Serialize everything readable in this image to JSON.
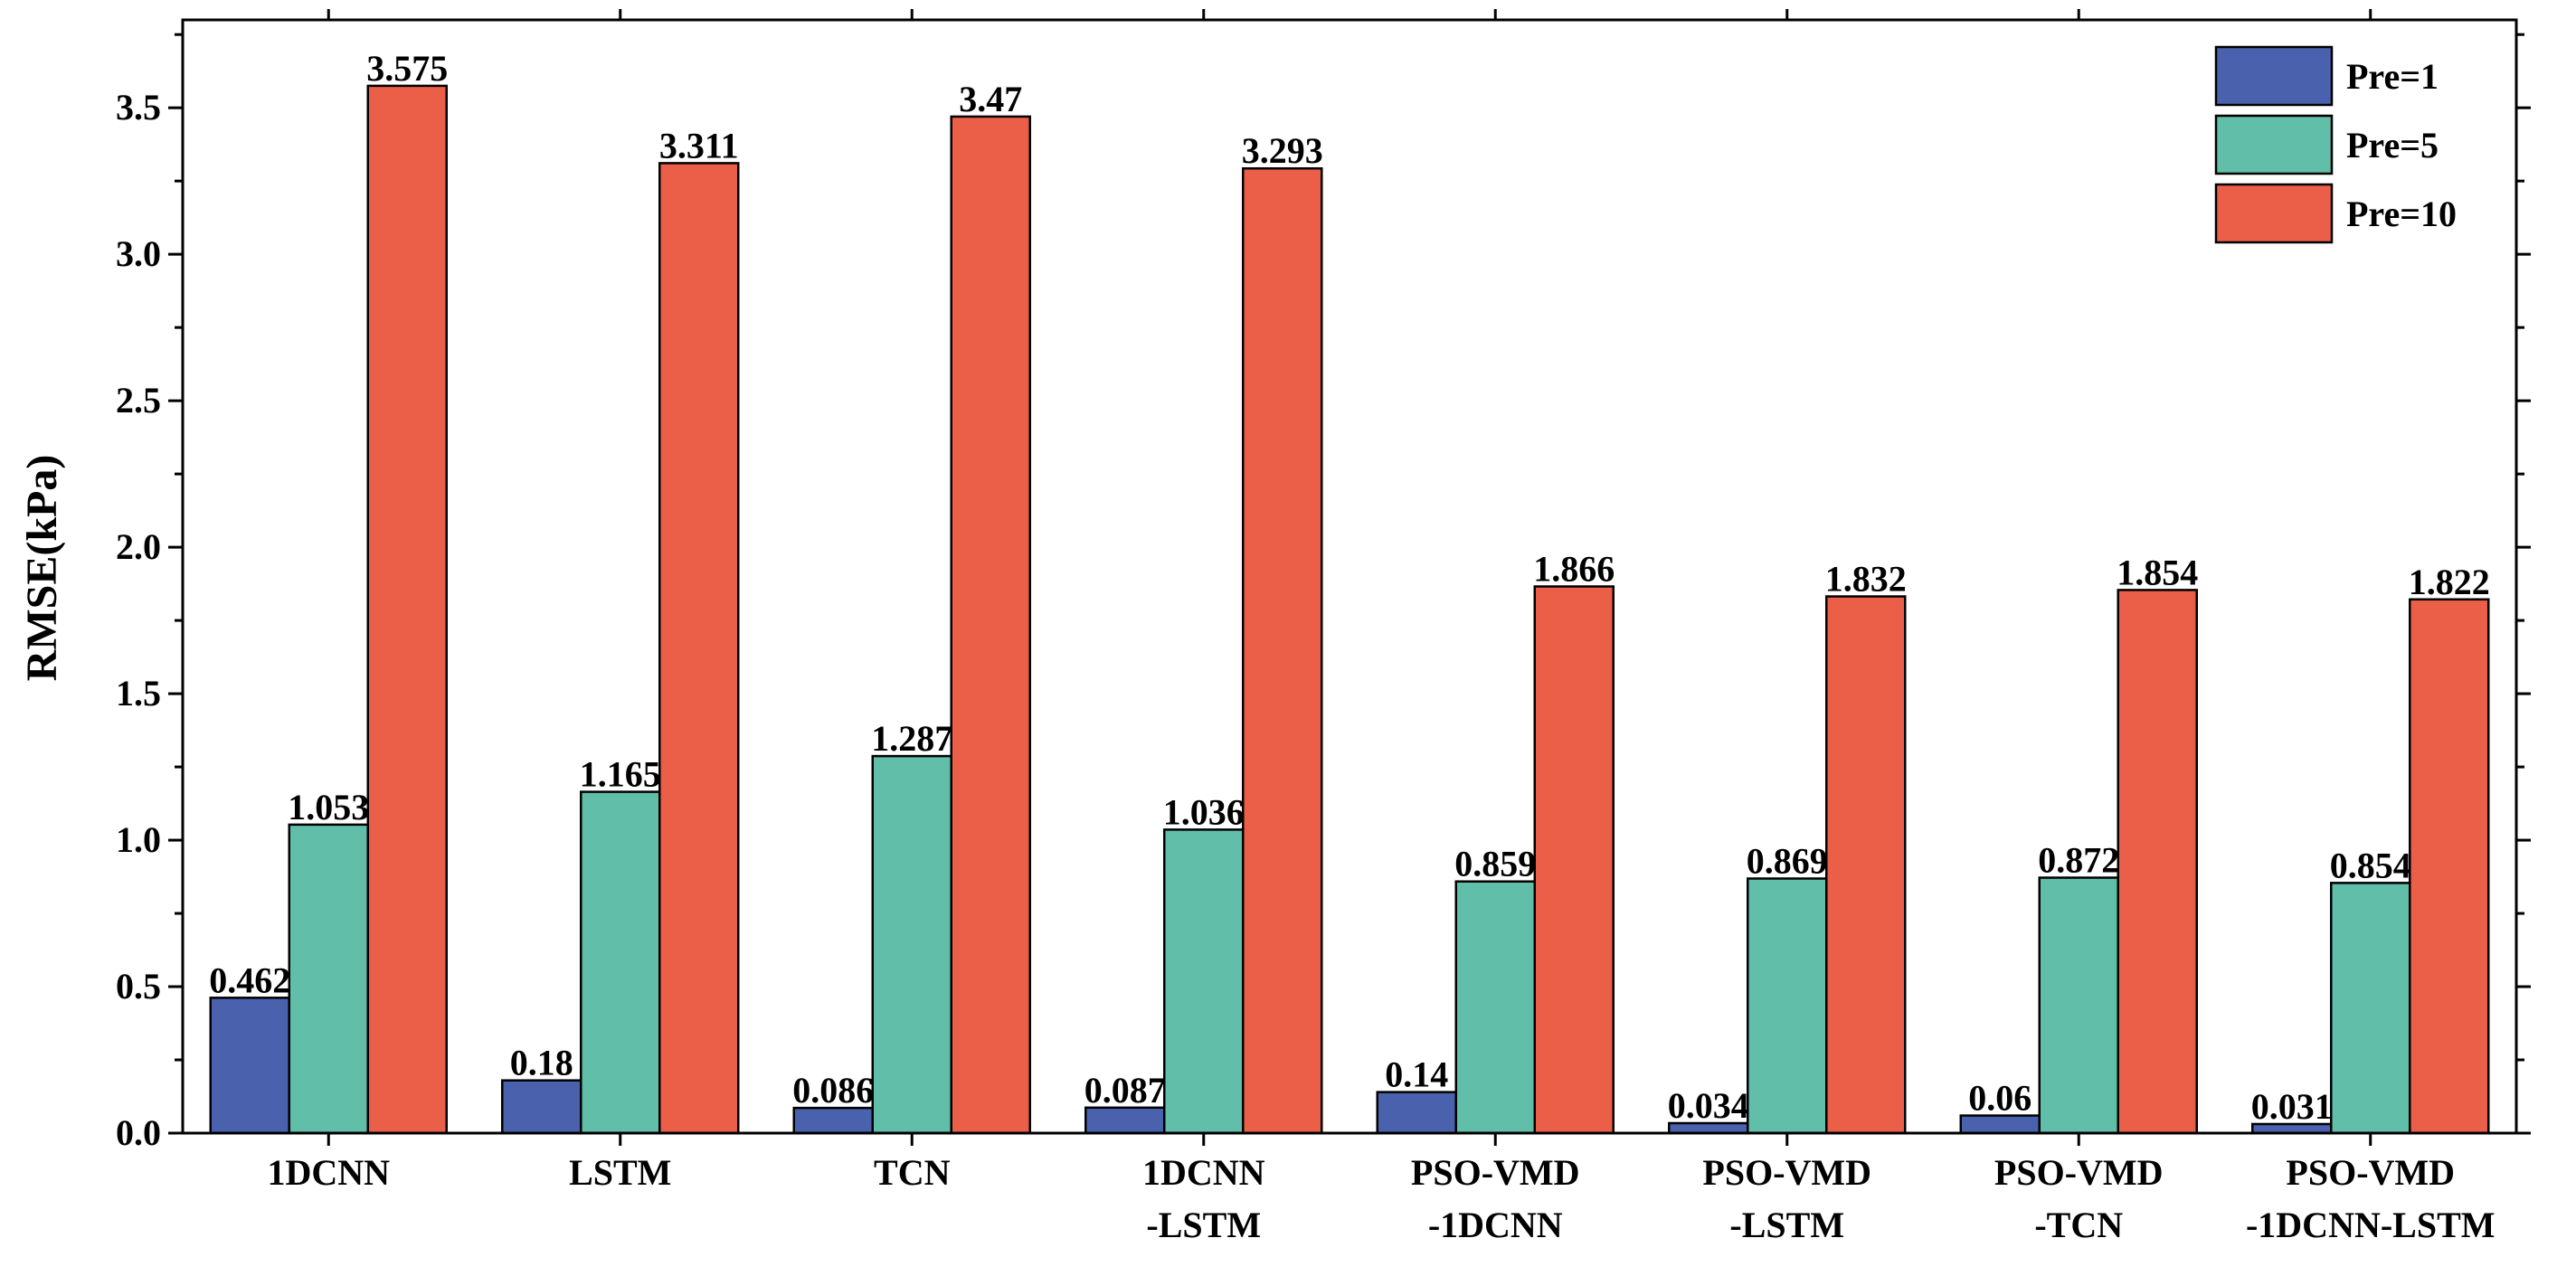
{
  "chart_data": {
    "type": "bar",
    "title": "",
    "xlabel": "",
    "ylabel": "RMSE(kPa)",
    "ylim": [
      0,
      3.8
    ],
    "yticks": [
      "0.0",
      "0.5",
      "1.0",
      "1.5",
      "2.0",
      "2.5",
      "3.0",
      "3.5"
    ],
    "categories": [
      [
        "1DCNN"
      ],
      [
        "LSTM"
      ],
      [
        "TCN"
      ],
      [
        "1DCNN",
        "-LSTM"
      ],
      [
        "PSO-VMD",
        "-1DCNN"
      ],
      [
        "PSO-VMD",
        "-LSTM"
      ],
      [
        "PSO-VMD",
        "-TCN"
      ],
      [
        "PSO-VMD",
        "-1DCNN-LSTM"
      ]
    ],
    "series": [
      {
        "name": "Pre=1",
        "color": "#4a62ad",
        "values": [
          0.462,
          0.18,
          0.086,
          0.087,
          0.14,
          0.034,
          0.06,
          0.031
        ],
        "labels": [
          "0.462",
          "0.18",
          "0.086",
          "0.087",
          "0.14",
          "0.034",
          "0.06",
          "0.031"
        ]
      },
      {
        "name": "Pre=5",
        "color": "#61bea8",
        "values": [
          1.053,
          1.165,
          1.287,
          1.036,
          0.859,
          0.869,
          0.872,
          0.854
        ],
        "labels": [
          "1.053",
          "1.165",
          "1.287",
          "1.036",
          "0.859",
          "0.869",
          "0.872",
          "0.854"
        ]
      },
      {
        "name": "Pre=10",
        "color": "#eb5e48",
        "values": [
          3.575,
          3.311,
          3.47,
          3.293,
          1.866,
          1.832,
          1.854,
          1.822
        ],
        "labels": [
          "3.575",
          "3.311",
          "3.47",
          "3.293",
          "1.866",
          "1.832",
          "1.854",
          "1.822"
        ]
      }
    ],
    "legend_position": "top-right",
    "grid": false
  }
}
